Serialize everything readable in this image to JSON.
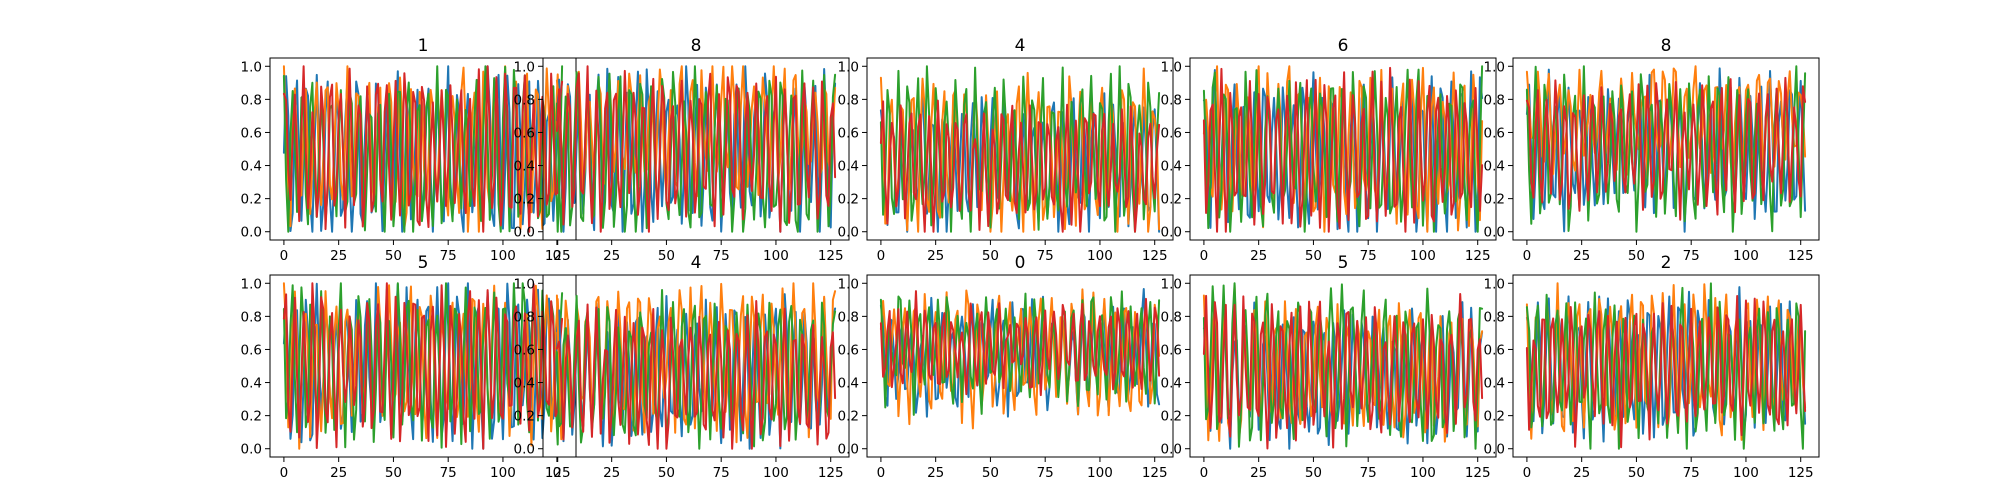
{
  "chart_data": {
    "type": "line",
    "layout": "2x5 grid of small-multiple line charts",
    "grid": false,
    "legend": "none",
    "colors": [
      "#1f77b4",
      "#ff7f0e",
      "#2ca02c",
      "#d62728"
    ],
    "x_ticks": [
      0,
      25,
      50,
      75,
      100,
      125
    ],
    "y_ticks": [
      "0.0",
      "0.2",
      "0.4",
      "0.6",
      "0.8",
      "1.0"
    ],
    "xlim": [
      -6.35,
      133.35
    ],
    "ylim": [
      -0.05,
      1.05
    ],
    "series_length": 128,
    "series_note": "128 points per series, values in [0,1]; dense oscillating signals",
    "panels": [
      {
        "title": "1",
        "series": [
          {
            "mean": 0.45,
            "amp": 0.5,
            "period": 4.6,
            "phase": 0.0
          },
          {
            "mean": 0.52,
            "amp": 0.44,
            "period": 4.8,
            "phase": 1.3
          },
          {
            "mean": 0.46,
            "amp": 0.48,
            "period": 4.4,
            "phase": 2.1
          },
          {
            "mean": 0.48,
            "amp": 0.46,
            "period": 4.2,
            "phase": 0.7
          }
        ]
      },
      {
        "title": "8",
        "series": [
          {
            "mean": 0.48,
            "amp": 0.48,
            "period": 4.5,
            "phase": 0.4
          },
          {
            "mean": 0.62,
            "amp": 0.34,
            "period": 4.7,
            "phase": 1.1
          },
          {
            "mean": 0.45,
            "amp": 0.5,
            "period": 4.9,
            "phase": 2.4
          },
          {
            "mean": 0.5,
            "amp": 0.44,
            "period": 4.3,
            "phase": 0.2
          }
        ]
      },
      {
        "title": "4",
        "series": [
          {
            "mean": 0.42,
            "amp": 0.36,
            "period": 4.6,
            "phase": 0.9
          },
          {
            "mean": 0.46,
            "amp": 0.44,
            "period": 4.8,
            "phase": 1.6
          },
          {
            "mean": 0.48,
            "amp": 0.44,
            "period": 4.4,
            "phase": 2.8
          },
          {
            "mean": 0.4,
            "amp": 0.34,
            "period": 4.2,
            "phase": 0.3
          }
        ]
      },
      {
        "title": "6",
        "series": [
          {
            "mean": 0.46,
            "amp": 0.46,
            "period": 4.5,
            "phase": 1.0
          },
          {
            "mean": 0.52,
            "amp": 0.46,
            "period": 4.7,
            "phase": 0.1
          },
          {
            "mean": 0.48,
            "amp": 0.46,
            "period": 4.9,
            "phase": 1.9
          },
          {
            "mean": 0.46,
            "amp": 0.44,
            "period": 4.3,
            "phase": 2.6
          }
        ]
      },
      {
        "title": "8",
        "series": [
          {
            "mean": 0.5,
            "amp": 0.4,
            "period": 4.6,
            "phase": 0.5
          },
          {
            "mean": 0.68,
            "amp": 0.28,
            "period": 4.8,
            "phase": 1.4
          },
          {
            "mean": 0.5,
            "amp": 0.44,
            "period": 4.4,
            "phase": 2.2
          },
          {
            "mean": 0.52,
            "amp": 0.36,
            "period": 4.2,
            "phase": 0.8
          }
        ]
      },
      {
        "title": "5",
        "series": [
          {
            "mean": 0.5,
            "amp": 0.46,
            "period": 4.6,
            "phase": 0.2
          },
          {
            "mean": 0.52,
            "amp": 0.44,
            "period": 4.8,
            "phase": 1.5
          },
          {
            "mean": 0.52,
            "amp": 0.46,
            "period": 4.4,
            "phase": 2.5
          },
          {
            "mean": 0.5,
            "amp": 0.42,
            "period": 4.2,
            "phase": 0.6
          }
        ]
      },
      {
        "title": "4",
        "series": [
          {
            "mean": 0.46,
            "amp": 0.4,
            "period": 4.5,
            "phase": 0.7
          },
          {
            "mean": 0.54,
            "amp": 0.44,
            "period": 4.7,
            "phase": 1.8
          },
          {
            "mean": 0.46,
            "amp": 0.4,
            "period": 4.9,
            "phase": 2.9
          },
          {
            "mean": 0.44,
            "amp": 0.38,
            "period": 4.3,
            "phase": 0.4
          }
        ]
      },
      {
        "title": "0",
        "series": [
          {
            "mean": 0.56,
            "amp": 0.3,
            "period": 4.6,
            "phase": 1.2
          },
          {
            "mean": 0.58,
            "amp": 0.34,
            "period": 4.8,
            "phase": 0.3
          },
          {
            "mean": 0.6,
            "amp": 0.3,
            "period": 4.4,
            "phase": 2.0
          },
          {
            "mean": 0.62,
            "amp": 0.22,
            "period": 4.2,
            "phase": 2.7
          }
        ]
      },
      {
        "title": "5",
        "series": [
          {
            "mean": 0.44,
            "amp": 0.4,
            "period": 4.5,
            "phase": 0.6
          },
          {
            "mean": 0.46,
            "amp": 0.4,
            "period": 4.7,
            "phase": 1.7
          },
          {
            "mean": 0.5,
            "amp": 0.44,
            "period": 4.9,
            "phase": 2.6
          },
          {
            "mean": 0.48,
            "amp": 0.36,
            "period": 4.3,
            "phase": 0.1
          }
        ]
      },
      {
        "title": "2",
        "series": [
          {
            "mean": 0.48,
            "amp": 0.4,
            "period": 4.6,
            "phase": 0.9
          },
          {
            "mean": 0.52,
            "amp": 0.4,
            "period": 4.8,
            "phase": 2.0
          },
          {
            "mean": 0.48,
            "amp": 0.42,
            "period": 4.4,
            "phase": 1.2
          },
          {
            "mean": 0.48,
            "amp": 0.36,
            "period": 4.2,
            "phase": 2.9
          }
        ]
      }
    ]
  }
}
